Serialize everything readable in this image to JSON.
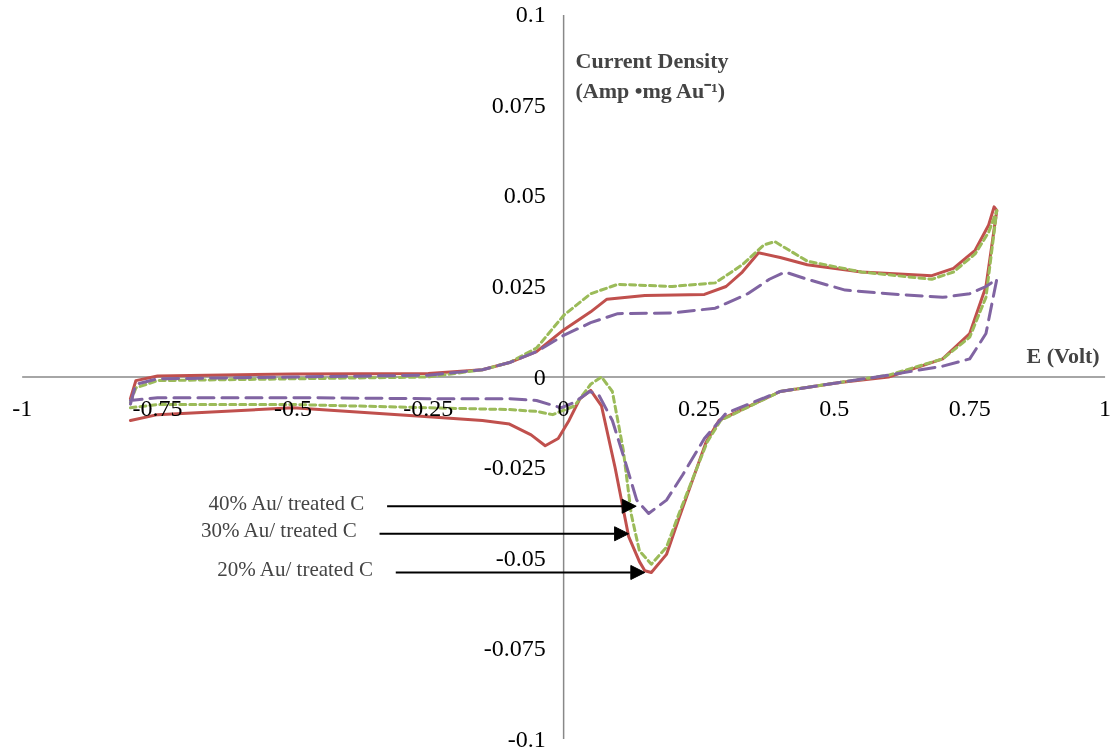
{
  "chart_data": {
    "type": "line",
    "ylabel": "Current Density\n(Amp •mg Au⁻¹)",
    "xlabel": "E (Volt)",
    "xlim": [
      -1,
      1
    ],
    "xticks": [
      -1,
      -0.75,
      -0.5,
      -0.25,
      0,
      0.25,
      0.5,
      0.75,
      1
    ],
    "ylim": [
      -0.1,
      0.1
    ],
    "yticks": [
      -0.1,
      -0.075,
      -0.05,
      -0.025,
      0,
      0.025,
      0.05,
      0.075,
      0.1
    ],
    "series": [
      {
        "color": "#c0504d",
        "line_style": "solid",
        "x": [
          -0.8,
          -0.79,
          -0.75,
          -0.5,
          -0.25,
          -0.15,
          -0.1,
          -0.05,
          0,
          0.05,
          0.08,
          0.15,
          0.26,
          0.3,
          0.33,
          0.36,
          0.4,
          0.45,
          0.55,
          0.68,
          0.72,
          0.76,
          0.785,
          0.795,
          0.8,
          0.78,
          0.75,
          0.7,
          0.6,
          0.51,
          0.4,
          0.287,
          0.263,
          0.213,
          0.19,
          0.162,
          0.15,
          0.14,
          0.12,
          0.095,
          0.07,
          0.05,
          0.03,
          0.01,
          -0.01,
          -0.034,
          -0.06,
          -0.1,
          -0.15,
          -0.25,
          -0.5,
          -0.75,
          -0.8
        ],
        "values": [
          -0.006,
          -0.001,
          0.0003,
          0.0008,
          0.001,
          0.002,
          0.004,
          0.007,
          0.013,
          0.018,
          0.0215,
          0.0225,
          0.0228,
          0.025,
          0.029,
          0.0343,
          0.033,
          0.031,
          0.029,
          0.028,
          0.03,
          0.035,
          0.042,
          0.047,
          0.046,
          0.025,
          0.012,
          0.005,
          0,
          -0.0015,
          -0.004,
          -0.012,
          -0.018,
          -0.039,
          -0.049,
          -0.054,
          -0.0535,
          -0.051,
          -0.044,
          -0.025,
          -0.008,
          -0.0037,
          -0.006,
          -0.012,
          -0.017,
          -0.019,
          -0.016,
          -0.013,
          -0.012,
          -0.011,
          -0.0085,
          -0.0104,
          -0.012
        ]
      },
      {
        "color": "#9bbb59",
        "line_style": "dotted",
        "x": [
          -0.8,
          -0.79,
          -0.75,
          -0.5,
          -0.25,
          -0.15,
          -0.1,
          -0.05,
          0,
          0.05,
          0.1,
          0.2,
          0.28,
          0.33,
          0.37,
          0.39,
          0.45,
          0.55,
          0.68,
          0.72,
          0.76,
          0.785,
          0.8,
          0.78,
          0.75,
          0.7,
          0.6,
          0.51,
          0.4,
          0.29,
          0.265,
          0.215,
          0.19,
          0.162,
          0.14,
          0.125,
          0.11,
          0.09,
          0.07,
          0.05,
          0.02,
          -0.02,
          -0.05,
          -0.1,
          -0.25,
          -0.5,
          -0.75,
          -0.8
        ],
        "values": [
          -0.007,
          -0.003,
          -0.001,
          -0.0005,
          0,
          0.002,
          0.004,
          0.008,
          0.017,
          0.023,
          0.0256,
          0.025,
          0.026,
          0.031,
          0.0365,
          0.0374,
          0.032,
          0.029,
          0.027,
          0.029,
          0.034,
          0.04,
          0.046,
          0.022,
          0.011,
          0.005,
          0.0005,
          -0.0015,
          -0.004,
          -0.012,
          -0.018,
          -0.037,
          -0.047,
          -0.0517,
          -0.048,
          -0.038,
          -0.02,
          -0.004,
          0,
          -0.002,
          -0.008,
          -0.0104,
          -0.0095,
          -0.009,
          -0.0085,
          -0.0076,
          -0.0076,
          -0.0085
        ]
      },
      {
        "color": "#8064a2",
        "line_style": "dashed",
        "x": [
          -0.8,
          -0.79,
          -0.75,
          -0.5,
          -0.25,
          -0.15,
          -0.1,
          -0.05,
          0,
          0.05,
          0.1,
          0.2,
          0.28,
          0.34,
          0.38,
          0.409,
          0.45,
          0.52,
          0.6,
          0.7,
          0.75,
          0.78,
          0.8,
          0.78,
          0.75,
          0.7,
          0.6,
          0.51,
          0.4,
          0.3,
          0.26,
          0.22,
          0.19,
          0.157,
          0.135,
          0.115,
          0.09,
          0.065,
          0.048,
          0.02,
          -0.005,
          -0.05,
          -0.1,
          -0.25,
          -0.5,
          -0.75,
          -0.8
        ],
        "values": [
          -0.0075,
          -0.002,
          -0.0005,
          0,
          0.0005,
          0.002,
          0.004,
          0.007,
          0.0115,
          0.015,
          0.0175,
          0.0177,
          0.019,
          0.023,
          0.027,
          0.029,
          0.027,
          0.024,
          0.023,
          0.022,
          0.023,
          0.025,
          0.027,
          0.012,
          0.005,
          0.003,
          0.0005,
          -0.0015,
          -0.004,
          -0.01,
          -0.017,
          -0.027,
          -0.034,
          -0.0377,
          -0.034,
          -0.024,
          -0.012,
          -0.005,
          -0.004,
          -0.007,
          -0.0085,
          -0.0065,
          -0.006,
          -0.006,
          -0.0057,
          -0.0057,
          -0.0065
        ]
      }
    ],
    "annotations": [
      {
        "text": "40% Au/ treated C",
        "x": 0.134,
        "y": -0.0357
      },
      {
        "text": "30% Au/ treated C",
        "x": 0.12,
        "y": -0.0433
      },
      {
        "text": "20% Au/ treated C",
        "x": 0.15,
        "y": -0.054
      }
    ]
  }
}
